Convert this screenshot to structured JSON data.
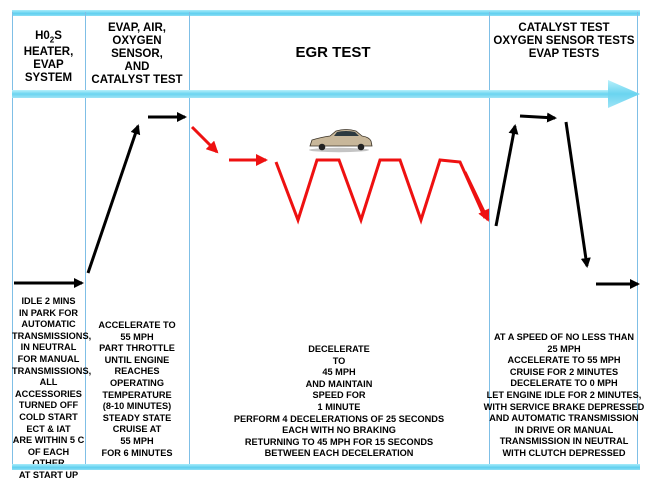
{
  "phases": {
    "p1": {
      "head": [
        "H0",
        "2",
        "S",
        "HEATER,",
        "EVAP",
        "SYSTEM"
      ],
      "desc": "IDLE 2 MINS\nIN PARK FOR\nAUTOMATIC\nTRANSMISSIONS,\nIN NEUTRAL\nFOR MANUAL\nTRANSMISSIONS,\nALL ACCESSORIES\nTURNED OFF\nCOLD START\nECT & IAT\nARE WITHIN 5 C\nOF EACH OTHER\nAT START UP"
    },
    "p2": {
      "head": [
        "EVAP, AIR,",
        "OXYGEN SENSOR,",
        "AND",
        "CATALYST TEST"
      ],
      "desc": "ACCELERATE TO\n55 MPH\nPART THROTTLE\nUNTIL ENGINE\nREACHES\nOPERATING\nTEMPERATURE\n(8-10 MINUTES)\nSTEADY STATE\nCRUISE AT\n55 MPH\nFOR 6 MINUTES"
    },
    "p3": {
      "head": "EGR TEST",
      "desc": "DECELERATE\nTO\n45 MPH\nAND MAINTAIN\nSPEED FOR\n1 MINUTE\nPERFORM 4 DECELERATIONS OF 25 SECONDS\nEACH WITH NO BRAKING\nRETURNING TO 45 MPH FOR 15 SECONDS\nBETWEEN EACH DECELERATION"
    },
    "p4": {
      "head": [
        "CATALYST TEST",
        "OXYGEN SENSOR TESTS",
        "EVAP TESTS"
      ],
      "desc": "AT A SPEED OF NO LESS THAN\n25 MPH\nACCELERATE TO 55 MPH\nCRUISE FOR 2 MINUTES\nDECELERATE TO 0 MPH\nLET ENGINE IDLE FOR 2  MINUTES,\nWITH SERVICE BRAKE DEPRESSED\nAND AUTOMATIC TRANSMISSION\nIN DRIVE OR MANUAL\nTRANSMISSION IN NEUTRAL\nWITH CLUTCH DEPRESSED"
    }
  },
  "icons": {
    "timeline": "timeline-arrow-icon",
    "car": "car-icon"
  },
  "colors": {
    "band": "#5fcfef",
    "divider": "#7fbfe6",
    "egr_trace": "#ee1111",
    "trace": "#000000"
  }
}
